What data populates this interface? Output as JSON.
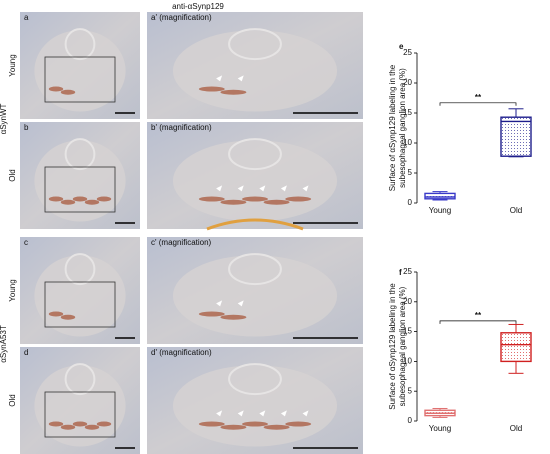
{
  "figure": {
    "title": "anti-αSynp129",
    "panels": [
      "a",
      "a' (magnification)",
      "b",
      "b' (magnification)",
      "c",
      "c' (magnification)",
      "d",
      "d' (magnification)"
    ],
    "rows": [
      "Young",
      "Old",
      "Young",
      "Old"
    ],
    "groups": [
      "αSynWT",
      "αSynA53T"
    ]
  },
  "chart_data": [
    {
      "type": "box",
      "panel": "e",
      "ylabel": [
        "Surface of αSynp129 labeling in the",
        "subesophageal ganglion area (%)"
      ],
      "categories": [
        "Young",
        "Old"
      ],
      "boxes": [
        {
          "min": 0.5,
          "q1": 0.7,
          "median": 1.0,
          "q3": 1.6,
          "max": 1.9,
          "color": "#3a3ac8"
        },
        {
          "min": 7.7,
          "q1": 7.8,
          "median": 13.6,
          "q3": 14.3,
          "max": 15.7,
          "color": "#1e1e8c"
        }
      ],
      "ylim": [
        0,
        25
      ],
      "yticks": [
        0,
        5,
        10,
        15,
        20,
        25
      ],
      "annotation": {
        "text": "**",
        "y": 16.7
      }
    },
    {
      "type": "box",
      "panel": "f",
      "ylabel": [
        "Surface of αSynp129 labeling in the",
        "subesophageal ganglion area (%)"
      ],
      "categories": [
        "Young",
        "Old"
      ],
      "boxes": [
        {
          "min": 0.6,
          "q1": 0.9,
          "median": 1.3,
          "q3": 1.8,
          "max": 2.1,
          "color": "#e07070"
        },
        {
          "min": 8.0,
          "q1": 10.0,
          "median": 12.8,
          "q3": 14.8,
          "max": 16.2,
          "color": "#d02020"
        }
      ],
      "ylim": [
        0,
        25
      ],
      "yticks": [
        0,
        5,
        10,
        15,
        20,
        25
      ],
      "annotation": {
        "text": "**",
        "y": 16.8
      }
    }
  ]
}
